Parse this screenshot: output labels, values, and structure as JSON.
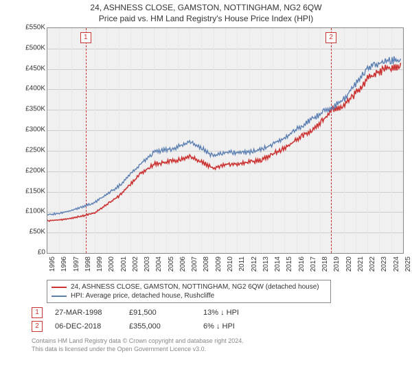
{
  "title_line1": "24, ASHNESS CLOSE, GAMSTON, NOTTINGHAM, NG2 6QW",
  "title_line2": "Price paid vs. HM Land Registry's House Price Index (HPI)",
  "chart": {
    "type": "line",
    "background_color": "#f0f0f0",
    "grid_color_h": "#cccccc",
    "grid_color_v": "#e8e8e8",
    "border_color": "#888888",
    "xlim": [
      1995,
      2025
    ],
    "ylim": [
      0,
      550000
    ],
    "ytick_step": 50000,
    "ytick_labels": [
      "£0",
      "£50K",
      "£100K",
      "£150K",
      "£200K",
      "£250K",
      "£300K",
      "£350K",
      "£400K",
      "£450K",
      "£500K",
      "£550K"
    ],
    "xtick_step": 1,
    "xtick_labels": [
      "1995",
      "1996",
      "1997",
      "1998",
      "1999",
      "2000",
      "2001",
      "2002",
      "2003",
      "2004",
      "2005",
      "2006",
      "2007",
      "2008",
      "2009",
      "2010",
      "2011",
      "2012",
      "2013",
      "2014",
      "2015",
      "2016",
      "2017",
      "2018",
      "2019",
      "2020",
      "2021",
      "2022",
      "2023",
      "2024",
      "2025"
    ],
    "series": [
      {
        "name": "24, ASHNESS CLOSE, GAMSTON, NOTTINGHAM, NG2 6QW (detached house)",
        "color": "#cc3333",
        "width": 1.6,
        "x": [
          1995,
          1996,
          1997,
          1998,
          1999,
          2000,
          2001,
          2002,
          2003,
          2004,
          2005,
          2006,
          2007,
          2008,
          2009,
          2010,
          2011,
          2012,
          2013,
          2014,
          2015,
          2016,
          2017,
          2018,
          2019,
          2020,
          2021,
          2022,
          2023,
          2024,
          2024.8
        ],
        "y": [
          80000,
          82000,
          86000,
          92000,
          100000,
          120000,
          140000,
          170000,
          200000,
          220000,
          225000,
          230000,
          240000,
          225000,
          210000,
          220000,
          220000,
          225000,
          230000,
          245000,
          260000,
          280000,
          300000,
          320000,
          355000,
          365000,
          395000,
          430000,
          450000,
          460000,
          465000
        ]
      },
      {
        "name": "HPI: Average price, detached house, Rushcliffe",
        "color": "#5b7fb2",
        "width": 1.4,
        "x": [
          1995,
          1996,
          1997,
          1998,
          1999,
          2000,
          2001,
          2002,
          2003,
          2004,
          2005,
          2006,
          2007,
          2008,
          2009,
          2010,
          2011,
          2012,
          2013,
          2014,
          2015,
          2016,
          2017,
          2018,
          2019,
          2020,
          2021,
          2022,
          2023,
          2024,
          2024.8
        ],
        "y": [
          95000,
          98000,
          105000,
          115000,
          125000,
          145000,
          165000,
          195000,
          225000,
          250000,
          255000,
          262000,
          275000,
          260000,
          240000,
          250000,
          248000,
          250000,
          255000,
          270000,
          285000,
          305000,
          325000,
          345000,
          360000,
          380000,
          420000,
          460000,
          470000,
          478000,
          475000
        ]
      }
    ],
    "markers": [
      {
        "id": "1",
        "x": 1998.23
      },
      {
        "id": "2",
        "x": 2018.93
      }
    ]
  },
  "legend": {
    "items": [
      {
        "color": "#cc3333",
        "label": "24, ASHNESS CLOSE, GAMSTON, NOTTINGHAM, NG2 6QW (detached house)"
      },
      {
        "color": "#5b7fb2",
        "label": "HPI: Average price, detached house, Rushcliffe"
      }
    ]
  },
  "transactions": [
    {
      "id": "1",
      "date": "27-MAR-1998",
      "price": "£91,500",
      "delta": "13% ↓ HPI"
    },
    {
      "id": "2",
      "date": "06-DEC-2018",
      "price": "£355,000",
      "delta": "6% ↓ HPI"
    }
  ],
  "footer_line1": "Contains HM Land Registry data © Crown copyright and database right 2024.",
  "footer_line2": "This data is licensed under the Open Government Licence v3.0."
}
